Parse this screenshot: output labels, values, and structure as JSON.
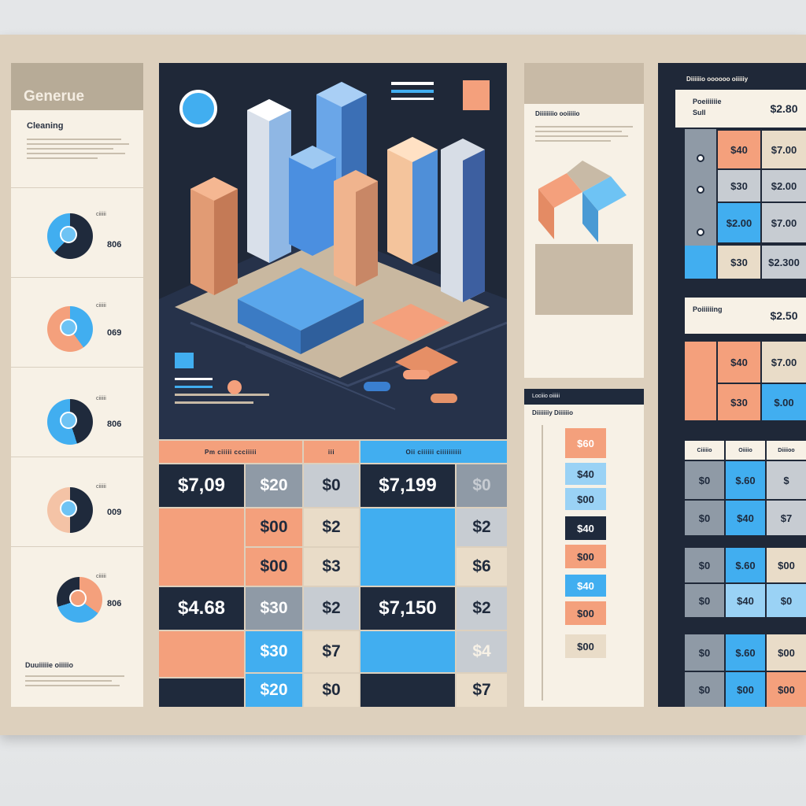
{
  "left": {
    "title": "Generue",
    "subtitle": "Cleaning",
    "footer": "Duuiiiiie oiiiiio",
    "rings": [
      {
        "value": "806",
        "label": "ciiiiii"
      },
      {
        "value": "069",
        "label": "ciiiiii"
      },
      {
        "value": "806",
        "label": "ciiiiii"
      },
      {
        "value": "009",
        "label": "ciiiiii"
      },
      {
        "value": "806",
        "label": "ciiiiii"
      }
    ]
  },
  "price_tables": {
    "left": {
      "header": "Pm ciiiii ccciiiii",
      "header_right": "iii",
      "rows": [
        {
          "price": "$7,09",
          "mid": "$20",
          "small": "$0"
        },
        {
          "price": "",
          "mid": "$00",
          "small": "$2"
        },
        {
          "price": "",
          "mid": "$00",
          "small": "$3"
        },
        {
          "price": "$4.68",
          "mid": "$30",
          "small": "$2"
        },
        {
          "price": "",
          "mid": "$30",
          "small": "$7"
        },
        {
          "price": "",
          "mid": "$20",
          "small": "$0"
        }
      ]
    },
    "right": {
      "header": "Oii ciiiiii ciiiiiiiiii",
      "rows": [
        {
          "price": "$7,199",
          "small": "$0"
        },
        {
          "price": "",
          "small": "$2"
        },
        {
          "price": "",
          "small": "$6"
        },
        {
          "price": "$7,150",
          "small": "$2"
        },
        {
          "price": "",
          "small": "$4"
        },
        {
          "price": "",
          "small": "$7"
        }
      ]
    }
  },
  "mid_panel": {
    "title": "Diiiiiiiio ooiiiiio",
    "lower_title": "Lociiio oiiiiii",
    "lower_sub": "Diiiiiiiy Diiiiiio",
    "values": [
      "$60",
      "$40",
      "$00",
      "$40",
      "$00",
      "$40",
      "$00",
      "$00"
    ]
  },
  "right_panel": {
    "title": "Diiiiiio oooooo oiiiiiy",
    "block1_label": "Poeiiiiiie",
    "block1_label2": "Sull",
    "block1_value": "$2.80",
    "block1_rows": [
      {
        "a": "$40",
        "b": "$7.00"
      },
      {
        "a": "$30",
        "b": "$2.00"
      },
      {
        "a": "$2.00",
        "b": "$7.00"
      },
      {
        "a": "$30",
        "b": "$2.300"
      }
    ],
    "block2_label": "Poiiiiiing",
    "block2_value": "$2.50",
    "block2_rows": [
      {
        "a": "$40",
        "b": "$7.00"
      },
      {
        "a": "$30",
        "b": "$.00"
      }
    ],
    "block3_headers": [
      "Ciiiiio",
      "Oiiiio",
      "Diiiioo"
    ],
    "block3_rows": [
      {
        "a": "$0",
        "b": "$.60",
        "c": "$"
      },
      {
        "a": "$0",
        "b": "$40",
        "c": "$7"
      },
      {
        "a": "$0",
        "b": "$.60",
        "c": "$00"
      },
      {
        "a": "$0",
        "b": "$40",
        "c": "$0"
      },
      {
        "a": "$0",
        "b": "$.60",
        "c": "$00"
      },
      {
        "a": "$0",
        "b": "$00",
        "c": "$00"
      }
    ]
  }
}
